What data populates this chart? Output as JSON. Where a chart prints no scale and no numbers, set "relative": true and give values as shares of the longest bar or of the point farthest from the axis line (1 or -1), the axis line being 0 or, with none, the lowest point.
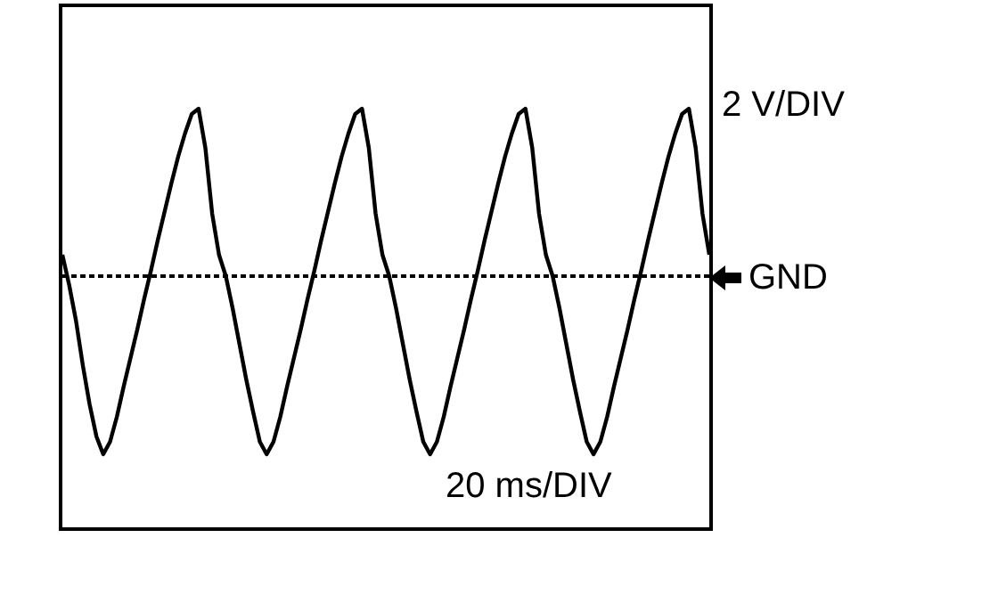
{
  "chart_data": {
    "type": "line",
    "relative": true,
    "categories": [
      null,
      null,
      null,
      null,
      null,
      null,
      null,
      null,
      null,
      null,
      null,
      null,
      null,
      null,
      null,
      null,
      null,
      null,
      null,
      null,
      null,
      null,
      null,
      null,
      null,
      null,
      null,
      null,
      null,
      null,
      null,
      null,
      null,
      null,
      null,
      null,
      null,
      null,
      null,
      null,
      null,
      null,
      null,
      null,
      null,
      null,
      null,
      null,
      null,
      null,
      null,
      null,
      null,
      null,
      null,
      null,
      null,
      null,
      null,
      null,
      null,
      null,
      null,
      null,
      null,
      null,
      null,
      null,
      null,
      null,
      null,
      null,
      null,
      null,
      null,
      null,
      null,
      null,
      null,
      null,
      null,
      null,
      null,
      null,
      null,
      null,
      null,
      null,
      null,
      null,
      null,
      null,
      null,
      null,
      null,
      null
    ],
    "series": [
      {
        "color": "#000000",
        "values": [
          0.12,
          -0.05,
          -0.25,
          -0.5,
          -0.72,
          -0.9,
          -1,
          -0.93,
          -0.79,
          -0.62,
          -0.46,
          -0.3,
          -0.13,
          0.03,
          0.2,
          0.36,
          0.52,
          0.67,
          0.8,
          0.91,
          0.94,
          0.72,
          0.35,
          0.12,
          0,
          -0.18,
          -0.38,
          -0.58,
          -0.76,
          -0.93,
          -1,
          -0.93,
          -0.79,
          -0.62,
          -0.46,
          -0.3,
          -0.13,
          0.03,
          0.2,
          0.36,
          0.52,
          0.67,
          0.8,
          0.91,
          0.94,
          0.72,
          0.35,
          0.12,
          0,
          -0.18,
          -0.38,
          -0.58,
          -0.76,
          -0.93,
          -1,
          -0.93,
          -0.79,
          -0.62,
          -0.46,
          -0.3,
          -0.13,
          0.03,
          0.2,
          0.36,
          0.52,
          0.67,
          0.8,
          0.91,
          0.94,
          0.72,
          0.35,
          0.12,
          0,
          -0.18,
          -0.38,
          -0.58,
          -0.76,
          -0.93,
          -1,
          -0.93,
          -0.79,
          -0.62,
          -0.46,
          -0.3,
          -0.13,
          0.03,
          0.2,
          0.36,
          0.52,
          0.67,
          0.8,
          0.91,
          0.94,
          0.72,
          0.35,
          0.12
        ]
      }
    ],
    "annotations": [
      "2 V/DIV",
      "20 ms/DIV"
    ],
    "ref_lines": [
      {
        "axis": "y",
        "value": 0,
        "label": "GND",
        "color": "#000000",
        "line_style": "dashed"
      }
    ],
    "marker": "none",
    "line_style": "solid"
  }
}
